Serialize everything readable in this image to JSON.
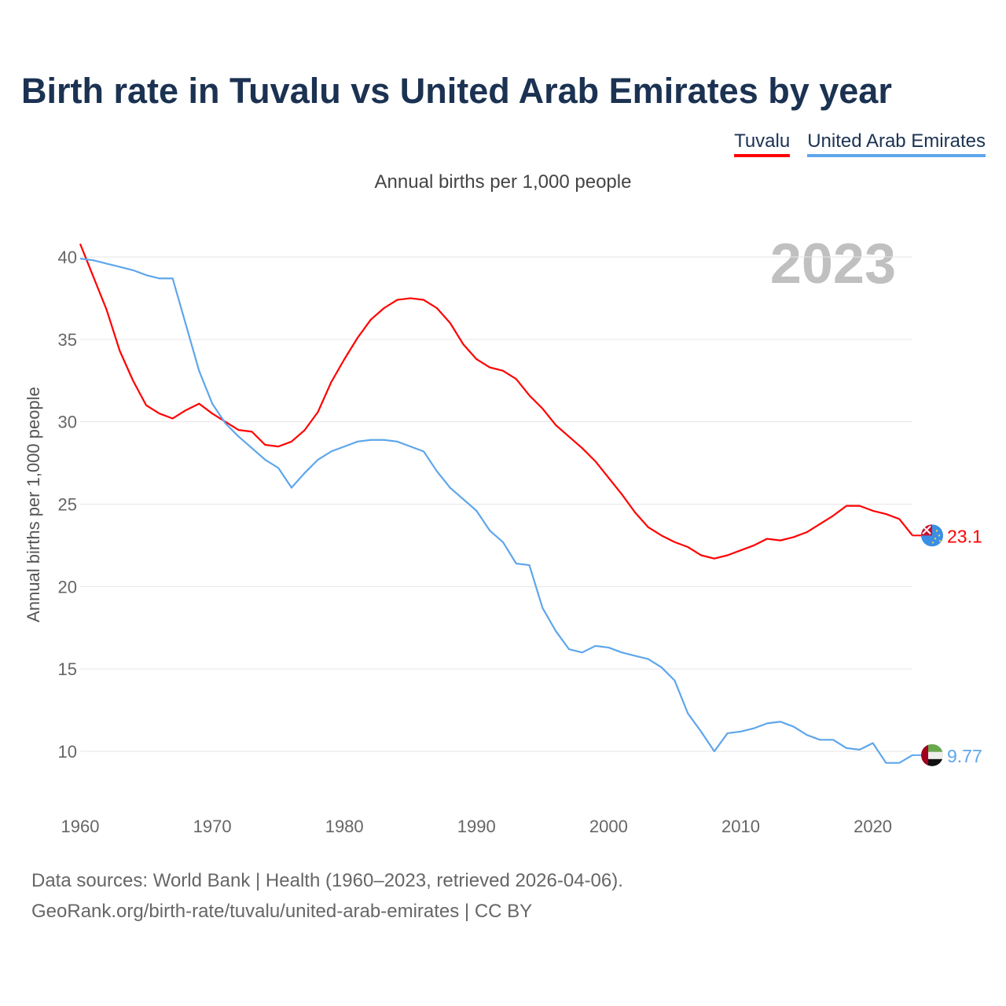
{
  "title": "Birth rate in Tuvalu vs United Arab Emirates by year",
  "legend": [
    {
      "label": "Tuvalu",
      "color": "#ff0000"
    },
    {
      "label": "United Arab Emirates",
      "color": "#5ea6ec"
    }
  ],
  "subtitle": "Annual births per 1,000 people",
  "year_label": "2023",
  "footer": {
    "line1": "Data sources: World Bank | Health (1960–2023, retrieved 2026-04-06).",
    "line2": "GeoRank.org/birth-rate/tuvalu/united-arab-emirates | CC BY"
  },
  "chart_data": {
    "type": "line",
    "title": "Birth rate in Tuvalu vs United Arab Emirates by year",
    "xlabel": "",
    "ylabel": "Annual births per 1,000 people",
    "xlim": [
      1960,
      2023
    ],
    "ylim": [
      7,
      41
    ],
    "xticks": [
      "1960",
      "1970",
      "1980",
      "1990",
      "2000",
      "2010",
      "2020"
    ],
    "yticks": [
      "10",
      "15",
      "20",
      "25",
      "30",
      "35",
      "40"
    ],
    "x_start": 1960,
    "series": [
      {
        "name": "Tuvalu",
        "color": "#ff0000",
        "end_label": "23.1",
        "values": [
          40.8,
          38.8,
          36.8,
          34.3,
          32.5,
          31.0,
          30.5,
          30.2,
          30.7,
          31.1,
          30.5,
          30.0,
          29.5,
          29.4,
          28.6,
          28.5,
          28.8,
          29.5,
          30.6,
          32.4,
          33.8,
          35.1,
          36.2,
          36.9,
          37.4,
          37.5,
          37.4,
          36.9,
          36.0,
          34.7,
          33.8,
          33.3,
          33.1,
          32.6,
          31.6,
          30.8,
          29.8,
          29.1,
          28.4,
          27.6,
          26.6,
          25.6,
          24.5,
          23.6,
          23.1,
          22.7,
          22.4,
          21.9,
          21.7,
          21.9,
          22.2,
          22.5,
          22.9,
          22.8,
          23.0,
          23.3,
          23.8,
          24.3,
          24.9,
          24.9,
          24.6,
          24.4,
          24.1,
          23.1
        ]
      },
      {
        "name": "United Arab Emirates",
        "color": "#5ea6ec",
        "end_label": "9.77",
        "values": [
          39.9,
          39.8,
          39.6,
          39.4,
          39.2,
          38.9,
          38.7,
          38.7,
          35.9,
          33.1,
          31.1,
          29.9,
          29.1,
          28.4,
          27.7,
          27.2,
          26.0,
          26.9,
          27.7,
          28.2,
          28.5,
          28.8,
          28.9,
          28.9,
          28.8,
          28.5,
          28.2,
          27.0,
          26.0,
          25.3,
          24.6,
          23.4,
          22.7,
          21.4,
          21.3,
          18.7,
          17.3,
          16.2,
          16.0,
          16.4,
          16.3,
          16.0,
          15.8,
          15.6,
          15.1,
          14.3,
          12.3,
          11.2,
          10.0,
          11.1,
          11.2,
          11.4,
          11.7,
          11.8,
          11.5,
          11.0,
          10.7,
          10.7,
          10.2,
          10.1,
          10.5,
          9.3,
          9.3,
          9.77
        ]
      }
    ]
  }
}
